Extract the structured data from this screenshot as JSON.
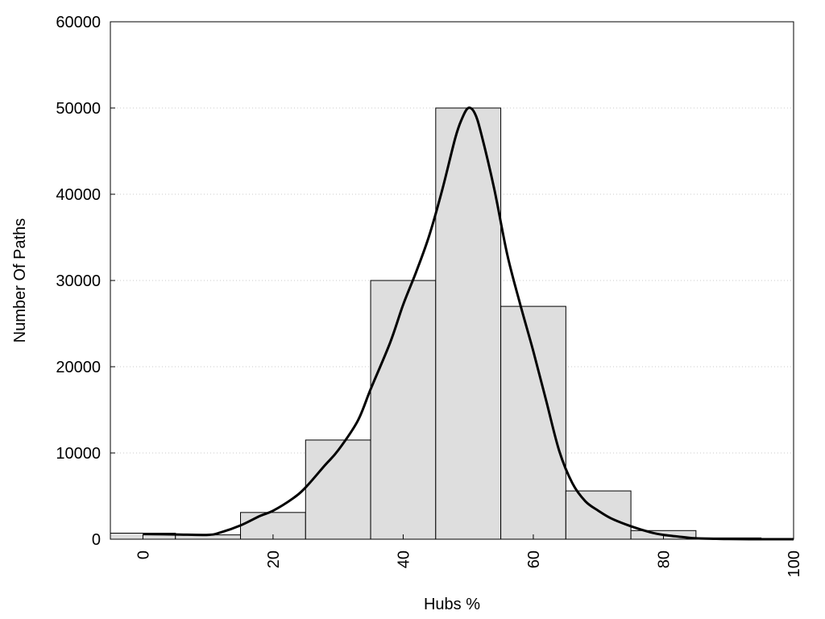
{
  "chart_data": {
    "type": "bar",
    "xlabel": "Hubs %",
    "ylabel": "Number Of Paths",
    "xlim": [
      -5,
      100
    ],
    "ylim": [
      0,
      60000
    ],
    "x_ticks": [
      0,
      20,
      40,
      60,
      80,
      100
    ],
    "y_ticks": [
      0,
      10000,
      20000,
      30000,
      40000,
      50000,
      60000
    ],
    "grid": "horizontal-dotted",
    "bin_width": 10,
    "bins": [
      {
        "x": 0,
        "value": 700
      },
      {
        "x": 10,
        "value": 500
      },
      {
        "x": 20,
        "value": 3100
      },
      {
        "x": 30,
        "value": 11500
      },
      {
        "x": 40,
        "value": 30000
      },
      {
        "x": 50,
        "value": 50000
      },
      {
        "x": 60,
        "value": 27000
      },
      {
        "x": 70,
        "value": 5600
      },
      {
        "x": 80,
        "value": 1000
      },
      {
        "x": 90,
        "value": 150
      }
    ],
    "curve": [
      [
        0,
        600
      ],
      [
        5,
        550
      ],
      [
        10,
        500
      ],
      [
        12,
        800
      ],
      [
        15,
        1600
      ],
      [
        18,
        2700
      ],
      [
        20,
        3300
      ],
      [
        23,
        4700
      ],
      [
        25,
        6000
      ],
      [
        28,
        8600
      ],
      [
        30,
        10300
      ],
      [
        33,
        13700
      ],
      [
        35,
        17400
      ],
      [
        38,
        22800
      ],
      [
        40,
        27200
      ],
      [
        42,
        31000
      ],
      [
        44,
        35200
      ],
      [
        46,
        40500
      ],
      [
        48,
        46500
      ],
      [
        49,
        48700
      ],
      [
        50,
        50000
      ],
      [
        51,
        49400
      ],
      [
        52,
        47000
      ],
      [
        54,
        40600
      ],
      [
        56,
        33000
      ],
      [
        58,
        27200
      ],
      [
        60,
        21800
      ],
      [
        62,
        16000
      ],
      [
        64,
        10200
      ],
      [
        66,
        6500
      ],
      [
        68,
        4400
      ],
      [
        70,
        3300
      ],
      [
        72,
        2400
      ],
      [
        75,
        1500
      ],
      [
        78,
        800
      ],
      [
        80,
        500
      ],
      [
        83,
        250
      ],
      [
        85,
        100
      ],
      [
        88,
        50
      ],
      [
        90,
        20
      ],
      [
        95,
        0
      ],
      [
        100,
        0
      ]
    ]
  }
}
